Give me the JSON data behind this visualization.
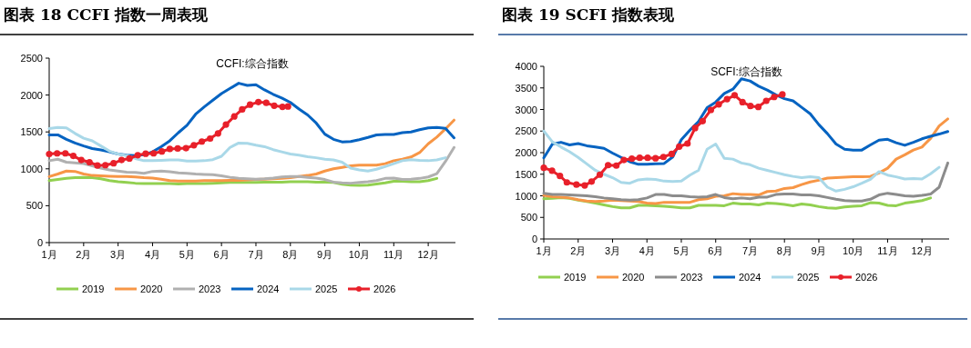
{
  "chart_data": [
    {
      "type": "line",
      "title": "图表 18   CCFI 指数一周表现",
      "subtitle": "CCFI:综合指数",
      "x": [
        1,
        1.25,
        1.5,
        1.75,
        2,
        2.25,
        2.5,
        2.75,
        3,
        3.25,
        3.5,
        3.75,
        4,
        4.25,
        4.5,
        4.75,
        5,
        5.25,
        5.5,
        5.75,
        6,
        6.25,
        6.5,
        6.75,
        7,
        7.25,
        7.5,
        7.75,
        8,
        8.25,
        8.5,
        8.75,
        9,
        9.25,
        9.5,
        9.75,
        10,
        10.25,
        10.5,
        10.75,
        11,
        11.25,
        11.5,
        11.75,
        12,
        12.25,
        12.5,
        12.75
      ],
      "xlim": [
        1,
        12.79
      ],
      "xticks": [
        {
          "value": 1,
          "label": "1月"
        },
        {
          "value": 2,
          "label": "2月"
        },
        {
          "value": 3,
          "label": "3月"
        },
        {
          "value": 4,
          "label": "4月"
        },
        {
          "value": 5,
          "label": "5月"
        },
        {
          "value": 6,
          "label": "6月"
        },
        {
          "value": 7,
          "label": "7月"
        },
        {
          "value": 8,
          "label": "8月"
        },
        {
          "value": 9,
          "label": "9月"
        },
        {
          "value": 10,
          "label": "10月"
        },
        {
          "value": 11,
          "label": "11月"
        },
        {
          "value": 12,
          "label": "12月"
        }
      ],
      "ylim": [
        0,
        2500
      ],
      "yticks": [
        0,
        500,
        1000,
        1500,
        2000,
        2500
      ],
      "grid": false,
      "legend": "bottom",
      "series": [
        {
          "name": "2019",
          "color": "#92d050",
          "values": [
            840,
            855,
            870,
            880,
            885,
            880,
            865,
            840,
            825,
            815,
            805,
            800,
            800,
            800,
            800,
            795,
            800,
            800,
            800,
            805,
            810,
            815,
            815,
            815,
            815,
            820,
            820,
            820,
            825,
            825,
            825,
            820,
            820,
            815,
            790,
            780,
            775,
            780,
            795,
            810,
            830,
            830,
            825,
            825,
            840,
            870,
            null,
            null
          ]
        },
        {
          "name": "2020",
          "color": "#f79646",
          "values": [
            895,
            930,
            970,
            965,
            930,
            910,
            905,
            900,
            895,
            895,
            890,
            880,
            875,
            860,
            840,
            835,
            835,
            835,
            840,
            840,
            840,
            845,
            845,
            850,
            855,
            860,
            865,
            870,
            880,
            895,
            910,
            930,
            970,
            1000,
            1020,
            1040,
            1050,
            1050,
            1050,
            1070,
            1110,
            1130,
            1160,
            1220,
            1340,
            1430,
            1540,
            1660
          ]
        },
        {
          "name": "2023",
          "color": "#b0b0b0",
          "values": [
            1110,
            1130,
            1090,
            1080,
            1070,
            1040,
            1010,
            985,
            970,
            955,
            950,
            940,
            965,
            970,
            960,
            945,
            940,
            930,
            925,
            920,
            905,
            885,
            870,
            865,
            860,
            865,
            875,
            890,
            895,
            895,
            885,
            875,
            855,
            820,
            810,
            805,
            815,
            825,
            840,
            870,
            875,
            855,
            860,
            870,
            890,
            935,
            1100,
            1290
          ]
        },
        {
          "name": "2024",
          "color": "#0563c1",
          "values": [
            1460,
            1460,
            1400,
            1350,
            1310,
            1275,
            1255,
            1230,
            1200,
            1185,
            1180,
            1190,
            1230,
            1300,
            1380,
            1490,
            1590,
            1740,
            1840,
            1930,
            2020,
            2090,
            2160,
            2130,
            2140,
            2070,
            2010,
            1960,
            1900,
            1810,
            1730,
            1620,
            1470,
            1400,
            1365,
            1370,
            1395,
            1425,
            1460,
            1465,
            1465,
            1490,
            1500,
            1530,
            1555,
            1560,
            1550,
            1420
          ]
        },
        {
          "name": "2025",
          "color": "#a9d8e8",
          "values": [
            1545,
            1560,
            1555,
            1480,
            1415,
            1380,
            1310,
            1240,
            1200,
            1180,
            1140,
            1110,
            1110,
            1115,
            1120,
            1120,
            1105,
            1105,
            1110,
            1125,
            1170,
            1290,
            1350,
            1345,
            1320,
            1300,
            1260,
            1230,
            1200,
            1185,
            1165,
            1150,
            1130,
            1120,
            1090,
            1010,
            985,
            970,
            995,
            1030,
            1070,
            1110,
            1125,
            1115,
            1110,
            1120,
            1150,
            null
          ]
        },
        {
          "name": "2026",
          "color": "#e8202a",
          "marker": "circle",
          "x": [
            1,
            1.23,
            1.47,
            1.7,
            1.93,
            2.17,
            2.4,
            2.63,
            2.87,
            3.1,
            3.33,
            3.57,
            3.8,
            4.03,
            4.27,
            4.5,
            4.73,
            4.97,
            5.2,
            5.43,
            5.67,
            5.9,
            6.13,
            6.37,
            6.6,
            6.83,
            7.07,
            7.3,
            7.53,
            7.77,
            7.93
          ],
          "values": [
            1200,
            1210,
            1210,
            1175,
            1120,
            1090,
            1045,
            1050,
            1075,
            1120,
            1140,
            1185,
            1205,
            1210,
            1235,
            1270,
            1275,
            1280,
            1320,
            1370,
            1410,
            1480,
            1600,
            1710,
            1805,
            1870,
            1905,
            1895,
            1855,
            1840,
            1845
          ]
        }
      ]
    },
    {
      "type": "line",
      "title": "图表 19   SCFI 指数表现",
      "subtitle": "SCFI:综合指数",
      "x": [
        1,
        1.25,
        1.5,
        1.75,
        2,
        2.25,
        2.5,
        2.75,
        3,
        3.25,
        3.5,
        3.75,
        4,
        4.25,
        4.5,
        4.75,
        5,
        5.25,
        5.5,
        5.75,
        6,
        6.25,
        6.5,
        6.75,
        7,
        7.25,
        7.5,
        7.75,
        8,
        8.25,
        8.5,
        8.75,
        9,
        9.25,
        9.5,
        9.75,
        10,
        10.25,
        10.5,
        10.75,
        11,
        11.25,
        11.5,
        11.75,
        12,
        12.25,
        12.5,
        12.75
      ],
      "xlim": [
        1,
        12.79
      ],
      "xticks": [
        {
          "value": 1,
          "label": "1月"
        },
        {
          "value": 2,
          "label": "2月"
        },
        {
          "value": 3,
          "label": "3月"
        },
        {
          "value": 4,
          "label": "4月"
        },
        {
          "value": 5,
          "label": "5月"
        },
        {
          "value": 6,
          "label": "6月"
        },
        {
          "value": 7,
          "label": "7月"
        },
        {
          "value": 8,
          "label": "8月"
        },
        {
          "value": 9,
          "label": "9月"
        },
        {
          "value": 10,
          "label": "10月"
        },
        {
          "value": 11,
          "label": "11月"
        },
        {
          "value": 12,
          "label": "12月"
        }
      ],
      "ylim": [
        0,
        4000
      ],
      "yticks": [
        0,
        500,
        1000,
        1500,
        2000,
        2500,
        3000,
        3500,
        4000
      ],
      "grid": false,
      "legend": "bottom",
      "series": [
        {
          "name": "2019",
          "color": "#92d050",
          "values": [
            930,
            940,
            960,
            940,
            900,
            870,
            830,
            790,
            750,
            720,
            720,
            780,
            780,
            770,
            760,
            740,
            720,
            720,
            780,
            780,
            780,
            770,
            830,
            810,
            810,
            790,
            830,
            820,
            800,
            770,
            810,
            790,
            750,
            720,
            710,
            740,
            760,
            770,
            840,
            830,
            780,
            770,
            830,
            860,
            890,
            950,
            null,
            null
          ]
        },
        {
          "name": "2020",
          "color": "#f79646",
          "values": [
            1010,
            980,
            970,
            950,
            910,
            880,
            870,
            880,
            900,
            890,
            880,
            870,
            830,
            820,
            850,
            850,
            850,
            850,
            910,
            930,
            990,
            1000,
            1050,
            1030,
            1030,
            1020,
            1100,
            1110,
            1170,
            1190,
            1260,
            1320,
            1360,
            1410,
            1420,
            1430,
            1440,
            1440,
            1450,
            1530,
            1640,
            1850,
            1950,
            2060,
            2130,
            2330,
            2620,
            2780
          ]
        },
        {
          "name": "2023",
          "color": "#8c8c8c",
          "values": [
            1060,
            1030,
            1030,
            1020,
            1010,
            1000,
            980,
            950,
            930,
            910,
            900,
            910,
            950,
            1030,
            1030,
            1000,
            1000,
            980,
            970,
            980,
            1030,
            960,
            930,
            950,
            930,
            970,
            970,
            1030,
            1040,
            1040,
            1020,
            1020,
            1000,
            960,
            920,
            890,
            880,
            880,
            920,
            1020,
            1060,
            1030,
            1000,
            990,
            1010,
            1040,
            1200,
            1760
          ]
        },
        {
          "name": "2024",
          "color": "#0563c1",
          "values": [
            1880,
            2200,
            2240,
            2180,
            2210,
            2160,
            2130,
            2100,
            1990,
            1890,
            1790,
            1730,
            1730,
            1740,
            1750,
            1900,
            2300,
            2520,
            2720,
            3040,
            3170,
            3370,
            3470,
            3710,
            3660,
            3540,
            3450,
            3340,
            3250,
            3200,
            3050,
            2900,
            2650,
            2440,
            2200,
            2080,
            2060,
            2060,
            2180,
            2290,
            2310,
            2230,
            2170,
            2240,
            2320,
            2380,
            2430,
            2490
          ]
        },
        {
          "name": "2025",
          "color": "#a9d8e8",
          "values": [
            2500,
            2250,
            2130,
            2020,
            1890,
            1740,
            1590,
            1500,
            1420,
            1310,
            1290,
            1370,
            1390,
            1380,
            1340,
            1330,
            1340,
            1480,
            1590,
            2080,
            2200,
            1870,
            1850,
            1760,
            1720,
            1640,
            1590,
            1540,
            1490,
            1450,
            1420,
            1440,
            1420,
            1200,
            1110,
            1150,
            1210,
            1290,
            1380,
            1560,
            1480,
            1440,
            1390,
            1400,
            1390,
            1510,
            1660,
            null
          ]
        },
        {
          "name": "2026",
          "color": "#e8202a",
          "marker": "circle",
          "x": [
            1,
            1.24,
            1.47,
            1.67,
            1.95,
            2.19,
            2.39,
            2.63,
            2.87,
            3.11,
            3.33,
            3.56,
            3.79,
            4.02,
            4.25,
            4.48,
            4.72,
            4.94,
            5.18,
            5.4,
            5.62,
            5.86,
            6.09,
            6.33,
            6.55,
            6.78,
            7.01,
            7.24,
            7.47,
            7.7,
            7.94
          ],
          "values": [
            1650,
            1580,
            1460,
            1310,
            1260,
            1240,
            1330,
            1490,
            1710,
            1700,
            1830,
            1860,
            1880,
            1880,
            1870,
            1900,
            1970,
            2140,
            2210,
            2570,
            2730,
            2990,
            3120,
            3240,
            3330,
            3170,
            3080,
            3060,
            3200,
            3290,
            3350
          ]
        }
      ]
    }
  ]
}
